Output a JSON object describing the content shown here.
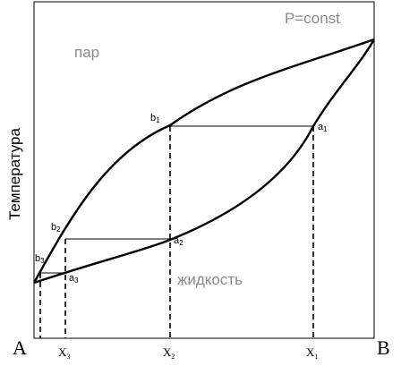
{
  "title": "P=const",
  "regions": {
    "vapor": "пар",
    "liquid": "жидкость"
  },
  "ylabel": "Температура",
  "components": {
    "left": "A",
    "right": "B"
  },
  "x_ticks": [
    {
      "base": "X",
      "sub": "3"
    },
    {
      "base": "X",
      "sub": "2"
    },
    {
      "base": "X",
      "sub": "1"
    }
  ],
  "points": {
    "b1": {
      "base": "b",
      "sub": "1"
    },
    "a1": {
      "base": "a",
      "sub": "1"
    },
    "b2": {
      "base": "b",
      "sub": "2"
    },
    "a2": {
      "base": "a",
      "sub": "2"
    },
    "b3": {
      "base": "b",
      "sub": "3"
    },
    "a3": {
      "base": "a",
      "sub": "3"
    }
  }
}
